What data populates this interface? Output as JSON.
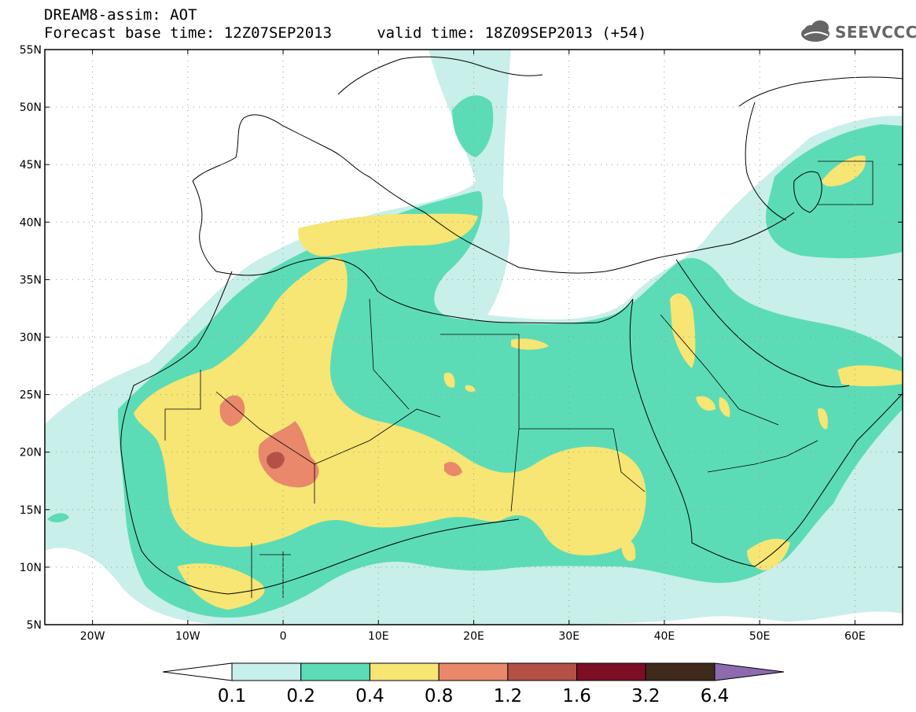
{
  "header": {
    "line1": "DREAM8-assim: AOT",
    "line2": "Forecast base time: 12Z07SEP2013     valid time: 18Z09SEP2013 (+54)",
    "logo_text": "SEEVCCC"
  },
  "map": {
    "lon_range": [
      -25,
      65
    ],
    "lat_range": [
      5,
      55
    ],
    "lat_labels": [
      "55N",
      "50N",
      "45N",
      "40N",
      "35N",
      "30N",
      "25N",
      "20N",
      "15N",
      "10N",
      "5N"
    ],
    "lon_labels": [
      "20W",
      "10W",
      "0",
      "10E",
      "20E",
      "30E",
      "40E",
      "50E",
      "60E"
    ],
    "grid": "dotted"
  },
  "colorbar": {
    "labels": [
      "0.1",
      "0.2",
      "0.4",
      "0.8",
      "1.2",
      "1.6",
      "3.2",
      "6.4"
    ],
    "colors": [
      "#ffffff",
      "#c8efe9",
      "#5cdcb6",
      "#f7e574",
      "#e9886a",
      "#b45146",
      "#7c0f24",
      "#3f2a1b",
      "#8e6aaf"
    ]
  },
  "colors": {
    "level1": "#c8efe9",
    "level2": "#5cdcb6",
    "level3": "#f7e574",
    "level4": "#e9886a",
    "level5": "#b45146"
  }
}
